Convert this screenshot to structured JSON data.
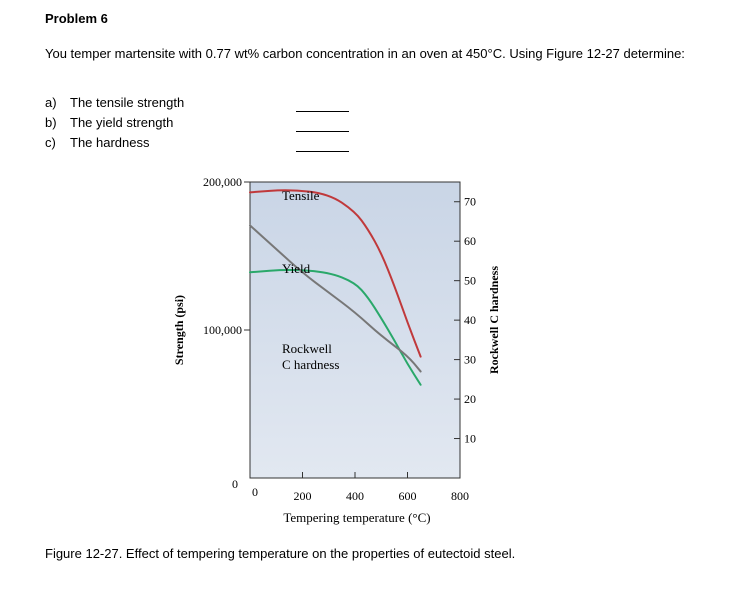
{
  "problem": {
    "title": "Problem 6",
    "intro": "You temper martensite with 0.77 wt% carbon concentration in an oven at 450°C. Using Figure 12-27 determine:",
    "questions": [
      {
        "letter": "a)",
        "text": "The tensile strength"
      },
      {
        "letter": "b)",
        "text": "The yield strength"
      },
      {
        "letter": "c)",
        "text": "The hardness"
      }
    ]
  },
  "figure": {
    "caption": "Figure 12-27. Effect of tempering temperature on the properties of eutectoid steel."
  },
  "chart_data": {
    "type": "line",
    "xlabel": "Tempering temperature (°C)",
    "ylabel": "Strength (psi)",
    "y2label": "Rockwell C hardness",
    "x_ticks": [
      "0",
      "200",
      "400",
      "600",
      "800"
    ],
    "y_ticks": [
      "0",
      "100,000",
      "200,000"
    ],
    "y2_ticks": [
      "10",
      "20",
      "30",
      "40",
      "50",
      "60",
      "70"
    ],
    "xlim": [
      0,
      800
    ],
    "ylim": [
      0,
      200000
    ],
    "y2lim": [
      0,
      75
    ],
    "series": [
      {
        "name": "Tensile",
        "color": "#c0393b",
        "x": [
          0,
          150,
          300,
          400,
          450,
          500,
          550,
          600,
          650
        ],
        "y": [
          193000,
          195000,
          192000,
          180000,
          168000,
          152000,
          130000,
          105000,
          82000
        ]
      },
      {
        "name": "Yield",
        "color": "#2aa86a",
        "x": [
          0,
          150,
          300,
          400,
          450,
          500,
          550,
          600,
          650
        ],
        "y": [
          139000,
          141000,
          139000,
          132000,
          122000,
          108000,
          93000,
          77000,
          63000
        ]
      },
      {
        "name": "Rockwell C hardness",
        "color": "#777777",
        "axis": "y2",
        "x": [
          0,
          100,
          200,
          300,
          400,
          500,
          600,
          650
        ],
        "y": [
          64,
          58,
          52,
          47,
          42,
          36,
          31,
          27
        ]
      }
    ],
    "annotations": [
      {
        "text": "Tensile"
      },
      {
        "text": "Yield"
      },
      {
        "text": "Rockwell"
      },
      {
        "text": "C hardness"
      }
    ]
  }
}
